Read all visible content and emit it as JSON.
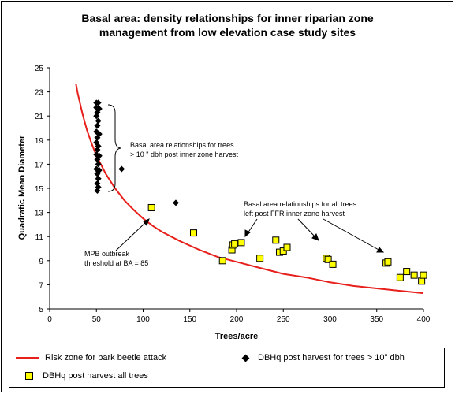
{
  "chart_data": {
    "type": "scatter",
    "title_line1": "Basal area: density relationships for inner riparian zone",
    "title_line2": "management from low elevation case study sites",
    "xlabel": "Trees/acre",
    "ylabel": "Quadratic Mean Diameter",
    "xlim": [
      0,
      400
    ],
    "ylim": [
      5,
      25
    ],
    "x_ticks": [
      "0",
      "50",
      "100",
      "150",
      "200",
      "250",
      "300",
      "350",
      "400"
    ],
    "y_ticks": [
      "5",
      "7",
      "9",
      "11",
      "13",
      "15",
      "17",
      "19",
      "21",
      "23",
      "25"
    ],
    "grid": false,
    "legend_position": "bottom",
    "colors": {
      "risk_line": "#e8201c",
      "dbh_gt10": "#000000",
      "all_trees_fill": "#ffff00",
      "all_trees_edge": "#000000"
    },
    "series": [
      {
        "name": "Risk zone for bark beetle attack",
        "type": "line",
        "basal_area": 85,
        "x": [
          28,
          30,
          35,
          40,
          45,
          50,
          60,
          70,
          80,
          90,
          100,
          110,
          120,
          140,
          160,
          180,
          200,
          225,
          250,
          275,
          300,
          325,
          350,
          375,
          400
        ],
        "y": [
          23.7,
          22.9,
          21.2,
          19.8,
          18.7,
          17.7,
          16.2,
          15.0,
          14.0,
          13.2,
          12.5,
          11.9,
          11.4,
          10.6,
          9.9,
          9.3,
          8.9,
          8.4,
          7.9,
          7.6,
          7.2,
          6.9,
          6.7,
          6.5,
          6.3
        ]
      },
      {
        "name": "DBHq post harvest for trees > 10\" dbh",
        "type": "scatter",
        "marker": "diamond",
        "points": [
          [
            50,
            22.1
          ],
          [
            52,
            22.1
          ],
          [
            50,
            21.7
          ],
          [
            53,
            21.6
          ],
          [
            51,
            21.3
          ],
          [
            50,
            21.0
          ],
          [
            52,
            20.6
          ],
          [
            51,
            20.2
          ],
          [
            50,
            19.7
          ],
          [
            53,
            19.5
          ],
          [
            51,
            19.2
          ],
          [
            50,
            18.8
          ],
          [
            52,
            18.5
          ],
          [
            51,
            18.2
          ],
          [
            50,
            17.8
          ],
          [
            53,
            17.7
          ],
          [
            51,
            17.4
          ],
          [
            52,
            17.0
          ],
          [
            50,
            16.6
          ],
          [
            53,
            16.5
          ],
          [
            51,
            16.2
          ],
          [
            52,
            15.8
          ],
          [
            51,
            15.4
          ],
          [
            52,
            15.1
          ],
          [
            51,
            14.8
          ],
          [
            77,
            16.6
          ],
          [
            135,
            13.8
          ]
        ]
      },
      {
        "name": "DBHq post harvest all trees",
        "type": "scatter",
        "marker": "square",
        "points": [
          [
            109,
            13.4
          ],
          [
            154,
            11.3
          ],
          [
            185,
            9.0
          ],
          [
            195,
            9.9
          ],
          [
            196,
            10.3
          ],
          [
            198,
            10.4
          ],
          [
            205,
            10.5
          ],
          [
            225,
            9.2
          ],
          [
            242,
            10.7
          ],
          [
            246,
            9.7
          ],
          [
            250,
            9.8
          ],
          [
            254,
            10.1
          ],
          [
            296,
            9.2
          ],
          [
            298,
            9.1
          ],
          [
            303,
            8.7
          ],
          [
            360,
            8.8
          ],
          [
            362,
            8.9
          ],
          [
            375,
            7.6
          ],
          [
            382,
            8.1
          ],
          [
            390,
            7.8
          ],
          [
            398,
            7.3
          ],
          [
            400,
            7.8
          ]
        ]
      }
    ],
    "annotations": [
      {
        "id": "brace",
        "lines": [
          "Basal area relationships for trees",
          "> 10 \" dbh post inner zone harvest"
        ]
      },
      {
        "id": "all-trees",
        "lines": [
          "Basal area relationships for all trees",
          "left post FFR inner zone harvest"
        ]
      },
      {
        "id": "mpb",
        "lines": [
          "MPB outbreak",
          "threshold at BA = 85"
        ]
      }
    ]
  },
  "legend": {
    "risk_label": "Risk zone for bark beetle attack",
    "dbh_label": "DBHq post harvest for trees > 10\" dbh",
    "all_label": "DBHq post harvest all trees"
  }
}
